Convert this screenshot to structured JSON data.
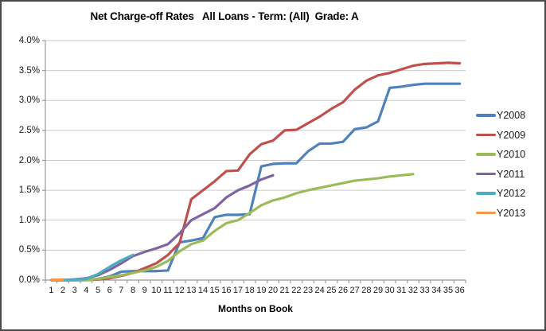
{
  "chart_data": {
    "type": "line",
    "title": "Net Charge-off Rates   All Loans - Term: (All)  Grade: A",
    "xlabel": "Months on Book",
    "ylabel": "",
    "xlim": [
      1,
      36
    ],
    "ylim": [
      0,
      4.0
    ],
    "grid": true,
    "legend_position": "right",
    "axis_color": "#9b9b9b",
    "gridline_color": "#c9c9c9",
    "frame_border_color": "#4a4a4a",
    "y_ticks": [
      "0.0%",
      "0.5%",
      "1.0%",
      "1.5%",
      "2.0%",
      "2.5%",
      "3.0%",
      "3.5%",
      "4.0%"
    ],
    "y_tick_values": [
      0,
      0.5,
      1.0,
      1.5,
      2.0,
      2.5,
      3.0,
      3.5,
      4.0
    ],
    "x_ticks": [
      1,
      2,
      3,
      4,
      5,
      6,
      7,
      8,
      9,
      10,
      11,
      12,
      13,
      14,
      15,
      16,
      17,
      18,
      19,
      20,
      21,
      22,
      23,
      24,
      25,
      26,
      27,
      28,
      29,
      30,
      31,
      32,
      33,
      34,
      35,
      36
    ],
    "series": [
      {
        "name": "Y2008",
        "color": "#4F81BD",
        "values": [
          0.0,
          0.0,
          0.0,
          0.0,
          0.02,
          0.06,
          0.14,
          0.15,
          0.15,
          0.15,
          0.16,
          0.63,
          0.66,
          0.7,
          1.05,
          1.09,
          1.09,
          1.1,
          1.9,
          1.94,
          1.95,
          1.95,
          2.15,
          2.28,
          2.28,
          2.31,
          2.52,
          2.55,
          2.65,
          3.21,
          3.23,
          3.26,
          3.28,
          3.28,
          3.28,
          3.28
        ]
      },
      {
        "name": "Y2009",
        "color": "#C0504D",
        "values": [
          0.0,
          0.0,
          0.0,
          0.0,
          0.01,
          0.03,
          0.07,
          0.12,
          0.2,
          0.28,
          0.42,
          0.62,
          1.35,
          1.5,
          1.65,
          1.82,
          1.83,
          2.1,
          2.27,
          2.33,
          2.5,
          2.51,
          2.62,
          2.73,
          2.86,
          2.97,
          3.18,
          3.33,
          3.42,
          3.46,
          3.52,
          3.58,
          3.61,
          3.62,
          3.63,
          3.62
        ]
      },
      {
        "name": "Y2010",
        "color": "#9BBB59",
        "values": [
          0.0,
          0.0,
          0.0,
          0.0,
          0.02,
          0.05,
          0.08,
          0.12,
          0.16,
          0.22,
          0.32,
          0.48,
          0.6,
          0.66,
          0.82,
          0.95,
          1.0,
          1.12,
          1.25,
          1.33,
          1.38,
          1.45,
          1.5,
          1.54,
          1.58,
          1.62,
          1.66,
          1.68,
          1.7,
          1.73,
          1.75,
          1.77
        ]
      },
      {
        "name": "Y2011",
        "color": "#8064A2",
        "values": [
          0.0,
          0.0,
          0.01,
          0.03,
          0.08,
          0.17,
          0.28,
          0.4,
          0.47,
          0.53,
          0.6,
          0.78,
          1.0,
          1.1,
          1.2,
          1.38,
          1.5,
          1.58,
          1.68,
          1.75
        ]
      },
      {
        "name": "Y2012",
        "color": "#4BACC6",
        "values": [
          0.0,
          0.0,
          0.0,
          0.02,
          0.1,
          0.22,
          0.33,
          0.42
        ]
      },
      {
        "name": "Y2013",
        "color": "#F79646",
        "values": [
          0.0,
          0.01
        ]
      }
    ]
  }
}
